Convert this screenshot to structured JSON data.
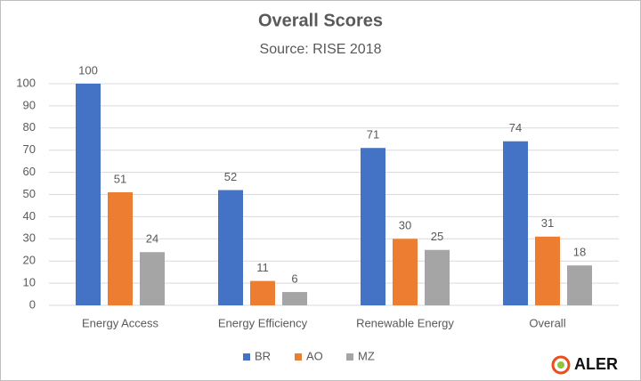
{
  "chart_data": {
    "type": "bar",
    "title": "Overall Scores",
    "subtitle": "Source: RISE 2018",
    "categories": [
      "Energy Access",
      "Energy Efficiency",
      "Renewable Energy",
      "Overall"
    ],
    "series": [
      {
        "name": "BR",
        "color": "#4472c4",
        "values": [
          100,
          52,
          71,
          74
        ]
      },
      {
        "name": "AO",
        "color": "#ed7d31",
        "values": [
          51,
          11,
          30,
          31
        ]
      },
      {
        "name": "MZ",
        "color": "#a5a5a5",
        "values": [
          24,
          6,
          25,
          18
        ]
      }
    ],
    "ylim": [
      0,
      100
    ],
    "yticks": [
      0,
      10,
      20,
      30,
      40,
      50,
      60,
      70,
      80,
      90,
      100
    ],
    "grid": true,
    "legend": "bottom",
    "logo": "ALER"
  }
}
